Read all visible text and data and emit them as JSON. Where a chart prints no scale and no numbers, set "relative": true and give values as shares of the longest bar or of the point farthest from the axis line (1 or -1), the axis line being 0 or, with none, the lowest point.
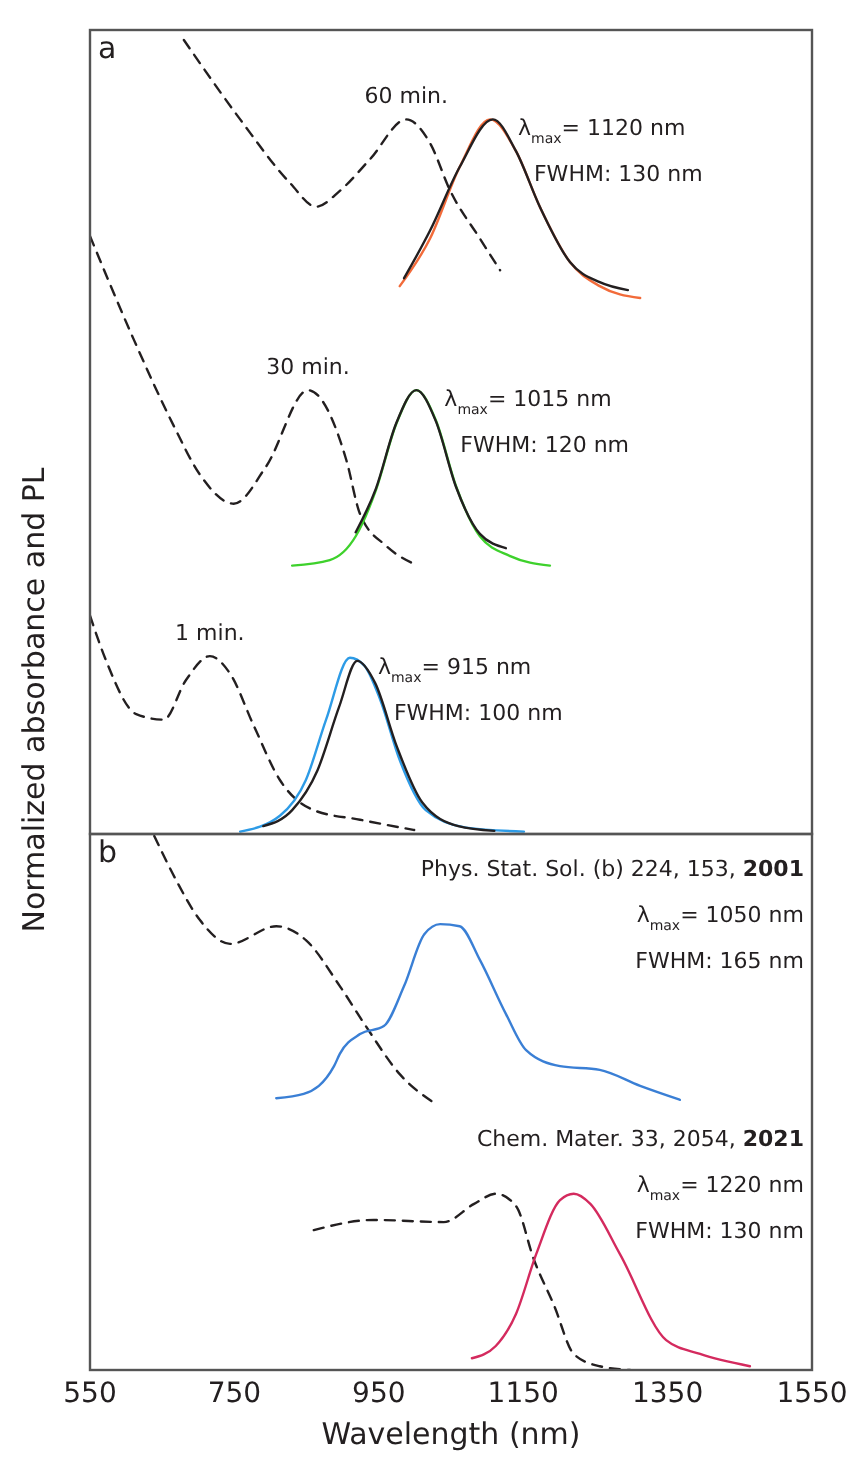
{
  "chart_data": [
    {
      "type": "line",
      "title": "a",
      "ylabel": "Normalized absorbance and PL",
      "relative": true,
      "xlim": [
        550,
        1550
      ],
      "tick_labels": false,
      "series": [
        {
          "color": "#231f20",
          "line_style": "dashed",
          "x": [
            680,
            758,
            827,
            863,
            896,
            938,
            988,
            1021,
            1049,
            1090,
            1118
          ],
          "values": [
            1.0,
            0.9,
            0.82,
            0.79,
            0.81,
            0.85,
            0.9,
            0.87,
            0.81,
            0.75,
            0.71
          ]
        },
        {
          "color": "#f26b3a",
          "line_style": "solid",
          "x": [
            979,
            1021,
            1062,
            1104,
            1140,
            1173,
            1215,
            1256,
            1312
          ],
          "values": [
            0.69,
            0.75,
            0.84,
            0.9,
            0.86,
            0.79,
            0.72,
            0.69,
            0.675
          ]
        },
        {
          "color": "#231f20",
          "line_style": "solid",
          "x": [
            985,
            1021,
            1062,
            1108,
            1140,
            1173,
            1215,
            1256,
            1295
          ],
          "values": [
            0.7,
            0.76,
            0.84,
            0.9,
            0.86,
            0.79,
            0.72,
            0.695,
            0.685
          ]
        },
        {
          "color": "#231f20",
          "line_style": "dashed",
          "x": [
            550,
            611,
            666,
            702,
            749,
            794,
            852,
            905,
            924,
            960,
            999
          ],
          "values": [
            0.753,
            0.622,
            0.514,
            0.453,
            0.416,
            0.463,
            0.559,
            0.471,
            0.403,
            0.363,
            0.34
          ]
        },
        {
          "color": "#3ed12c",
          "line_style": "solid",
          "x": [
            830,
            882,
            918,
            946,
            974,
            1002,
            1029,
            1057,
            1090,
            1132,
            1187
          ],
          "values": [
            0.338,
            0.345,
            0.375,
            0.433,
            0.516,
            0.559,
            0.521,
            0.438,
            0.375,
            0.35,
            0.338
          ]
        },
        {
          "color": "#231f20",
          "line_style": "solid",
          "x": [
            918,
            946,
            974,
            1002,
            1029,
            1057,
            1090,
            1126
          ],
          "values": [
            0.38,
            0.435,
            0.517,
            0.559,
            0.52,
            0.437,
            0.378,
            0.36
          ]
        },
        {
          "color": "#231f20",
          "line_style": "dashed",
          "x": [
            550,
            572,
            614,
            652,
            683,
            716,
            744,
            777,
            813,
            860,
            924,
            999
          ],
          "values": [
            0.275,
            0.219,
            0.151,
            0.144,
            0.194,
            0.224,
            0.202,
            0.136,
            0.068,
            0.03,
            0.018,
            0.005
          ]
        },
        {
          "color": "#2d9be6",
          "line_style": "solid",
          "x": [
            758,
            813,
            849,
            877,
            910,
            930,
            952,
            979,
            1015,
            1071,
            1151
          ],
          "values": [
            0.003,
            0.023,
            0.068,
            0.144,
            0.222,
            0.212,
            0.169,
            0.093,
            0.03,
            0.008,
            0.003
          ]
        },
        {
          "color": "#231f20",
          "line_style": "solid",
          "x": [
            790,
            830,
            865,
            895,
            920,
            945,
            975,
            1010,
            1060,
            1110
          ],
          "values": [
            0.01,
            0.03,
            0.08,
            0.16,
            0.218,
            0.19,
            0.11,
            0.04,
            0.01,
            0.004
          ]
        }
      ],
      "annotations": [
        "60 min.",
        "λ$_{max}$= 1120 nm",
        "FWHM: 130 nm",
        "30 min.",
        "λ$_{max}$= 1015 nm",
        "FWHM: 120 nm",
        "1 min.",
        "λ$_{max}$= 915 nm",
        "FWHM: 100 nm"
      ]
    },
    {
      "type": "line",
      "title": "b",
      "xlabel": "Wavelength (nm)",
      "relative": true,
      "xlim": [
        550,
        1550
      ],
      "xticks": [
        550,
        750,
        950,
        1150,
        1350,
        1550
      ],
      "tick_labels": "x",
      "series": [
        {
          "color": "#231f20",
          "line_style": "dashed",
          "x": [
            639,
            669,
            702,
            744,
            808,
            849,
            896,
            932,
            979,
            1029
          ],
          "values": [
            1.0,
            0.918,
            0.843,
            0.798,
            0.831,
            0.805,
            0.719,
            0.644,
            0.554,
            0.498
          ]
        },
        {
          "color": "#3a7fd5",
          "line_style": "solid",
          "x": [
            808,
            846,
            888,
            896,
            924,
            957,
            985,
            1013,
            1035,
            1062,
            1090,
            1126,
            1154,
            1201,
            1256,
            1312,
            1367
          ],
          "values": [
            0.509,
            0.517,
            0.569,
            0.592,
            0.629,
            0.644,
            0.719,
            0.816,
            0.835,
            0.831,
            0.768,
            0.667,
            0.599,
            0.569,
            0.562,
            0.532,
            0.506
          ]
        },
        {
          "color": "#231f20",
          "line_style": "dashed",
          "x": [
            860,
            943,
            1040,
            1082,
            1112,
            1140,
            1165,
            1193,
            1220,
            1256,
            1298
          ],
          "values": [
            0.262,
            0.281,
            0.277,
            0.311,
            0.33,
            0.307,
            0.206,
            0.12,
            0.03,
            0.007,
            0.0
          ]
        },
        {
          "color": "#d42a5e",
          "line_style": "solid",
          "x": [
            1079,
            1112,
            1140,
            1168,
            1201,
            1220,
            1243,
            1284,
            1348,
            1395,
            1464
          ],
          "values": [
            0.022,
            0.045,
            0.105,
            0.217,
            0.318,
            0.33,
            0.311,
            0.217,
            0.056,
            0.03,
            0.007
          ]
        }
      ],
      "annotations": [
        "Phys. Stat. Sol. (b) 224, 153, 2001",
        "λ$_{max}$= 1050 nm",
        "FWHM: 165 nm",
        "Chem. Mater. 33, 2054, 2021",
        "λ$_{max}$= 1220 nm",
        "FWHM: 130 nm"
      ]
    }
  ]
}
